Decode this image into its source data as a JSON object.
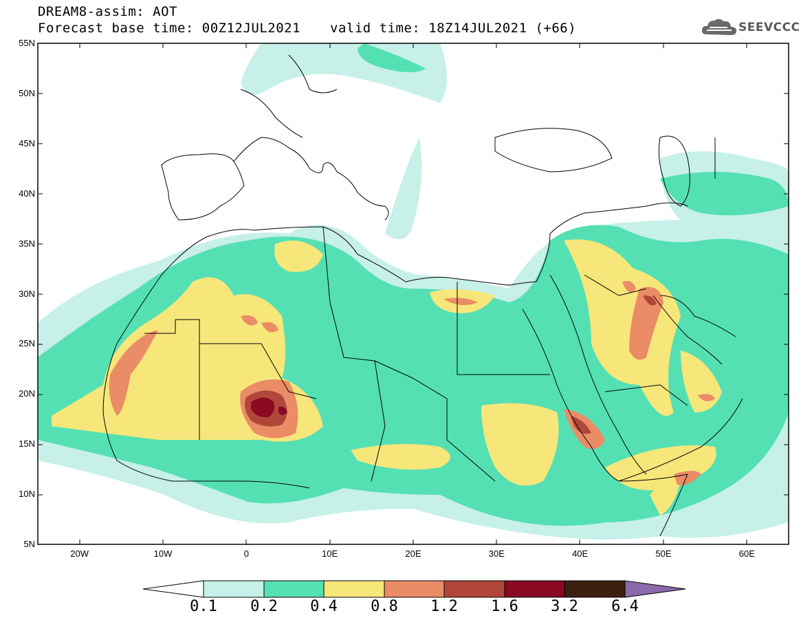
{
  "title": {
    "line1": "DREAM8-assim: AOT",
    "line2": "Forecast base time: 00Z12JUL2021",
    "valid": "valid time: 18Z14JUL2021 (+66)"
  },
  "logo": {
    "text": "SEEVCCC"
  },
  "map": {
    "extent": {
      "lon_min": -25,
      "lon_max": 65,
      "lat_min": 5,
      "lat_max": 55
    },
    "lat_ticks": [
      {
        "value": 55,
        "label": "55N"
      },
      {
        "value": 50,
        "label": "50N"
      },
      {
        "value": 45,
        "label": "45N"
      },
      {
        "value": 40,
        "label": "40N"
      },
      {
        "value": 35,
        "label": "35N"
      },
      {
        "value": 30,
        "label": "30N"
      },
      {
        "value": 25,
        "label": "25N"
      },
      {
        "value": 20,
        "label": "20N"
      },
      {
        "value": 15,
        "label": "15N"
      },
      {
        "value": 10,
        "label": "10N"
      },
      {
        "value": 5,
        "label": "5N"
      }
    ],
    "lon_ticks": [
      {
        "value": -20,
        "label": "20W"
      },
      {
        "value": -10,
        "label": "10W"
      },
      {
        "value": 0,
        "label": "0"
      },
      {
        "value": 10,
        "label": "10E"
      },
      {
        "value": 20,
        "label": "20E"
      },
      {
        "value": 30,
        "label": "30E"
      },
      {
        "value": 40,
        "label": "40E"
      },
      {
        "value": 50,
        "label": "50E"
      },
      {
        "value": 60,
        "label": "60E"
      }
    ]
  },
  "colorbar": {
    "colors": [
      "#ffffff",
      "#c6f0e8",
      "#55e0b4",
      "#f7e67a",
      "#ea8c66",
      "#b0473a",
      "#8a0a22",
      "#3b2012",
      "#8a6aaa"
    ],
    "labels": [
      "0.1",
      "0.2",
      "0.4",
      "0.8",
      "1.2",
      "1.6",
      "3.2",
      "6.4"
    ]
  }
}
